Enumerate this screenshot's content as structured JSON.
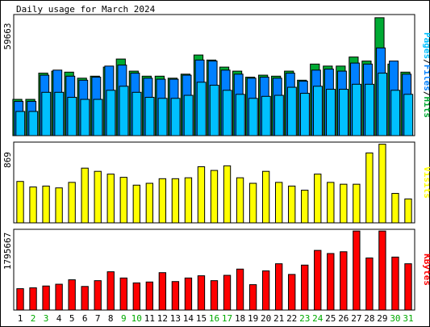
{
  "title": "Daily usage for March 2024",
  "days": [
    "1",
    "2",
    "3",
    "4",
    "5",
    "6",
    "7",
    "8",
    "9",
    "10",
    "11",
    "12",
    "13",
    "14",
    "15",
    "16",
    "17",
    "18",
    "19",
    "20",
    "21",
    "22",
    "23",
    "24",
    "25",
    "26",
    "27",
    "28",
    "29",
    "30",
    "31"
  ],
  "weekend_days": [
    "2",
    "3",
    "9",
    "10",
    "16",
    "17",
    "23",
    "24",
    "30",
    "31"
  ],
  "colors": {
    "hits": "#00AA33",
    "files": "#0080FF",
    "pages": "#00C0FF",
    "visits": "#FFFF00",
    "kbytes": "#FF0000",
    "weekday_label": "#000000",
    "weekend_label": "#00AA00"
  },
  "chart_data": [
    {
      "type": "bar",
      "panel": "hits",
      "max_label": "59663",
      "ylim": [
        0,
        59663
      ],
      "legend": [
        {
          "label": "Pages",
          "color": "#00C0FF"
        },
        {
          "label": "/",
          "color": "#000000"
        },
        {
          "label": "Files",
          "color": "#0080FF"
        },
        {
          "label": "/",
          "color": "#000000"
        },
        {
          "label": "Hits",
          "color": "#00AA33"
        }
      ],
      "categories": [
        "1",
        "2",
        "3",
        "4",
        "5",
        "6",
        "7",
        "8",
        "9",
        "10",
        "11",
        "12",
        "13",
        "14",
        "15",
        "16",
        "17",
        "18",
        "19",
        "20",
        "21",
        "22",
        "23",
        "24",
        "25",
        "26",
        "27",
        "28",
        "29",
        "30",
        "31"
      ],
      "series": [
        {
          "name": "Hits",
          "values": [
            18000,
            18000,
            31000,
            32000,
            31500,
            28500,
            29500,
            34000,
            38000,
            32000,
            29500,
            29500,
            28500,
            30500,
            40000,
            37500,
            34000,
            32000,
            29000,
            30000,
            29500,
            32000,
            27500,
            35500,
            34500,
            34500,
            39000,
            37000,
            58500,
            35500,
            31500
          ]
        },
        {
          "name": "Files",
          "values": [
            17000,
            17000,
            30000,
            32500,
            29500,
            27500,
            29000,
            34500,
            35000,
            31000,
            28500,
            28000,
            28000,
            30000,
            37500,
            37000,
            32500,
            30500,
            28500,
            29000,
            28500,
            31000,
            27000,
            32500,
            33000,
            32000,
            36000,
            35500,
            43500,
            37000,
            30500
          ]
        },
        {
          "name": "Pages",
          "values": [
            12000,
            12000,
            21500,
            21500,
            19000,
            18000,
            18000,
            22500,
            24500,
            21500,
            19000,
            18500,
            18500,
            20000,
            26500,
            25000,
            22500,
            20500,
            18500,
            19500,
            20000,
            24000,
            21000,
            24500,
            23000,
            23000,
            25500,
            25500,
            31000,
            22500,
            20500
          ]
        }
      ]
    },
    {
      "type": "bar",
      "panel": "visits",
      "max_label": "869",
      "ylim": [
        0,
        869
      ],
      "legend": [
        {
          "label": "Visits",
          "color": "#FFFF00"
        }
      ],
      "categories": [
        "1",
        "2",
        "3",
        "4",
        "5",
        "6",
        "7",
        "8",
        "9",
        "10",
        "11",
        "12",
        "13",
        "14",
        "15",
        "16",
        "17",
        "18",
        "19",
        "20",
        "21",
        "22",
        "23",
        "24",
        "25",
        "26",
        "27",
        "28",
        "29",
        "30",
        "31"
      ],
      "series": [
        {
          "name": "Visits",
          "values": [
            450,
            390,
            400,
            380,
            440,
            595,
            560,
            530,
            495,
            410,
            430,
            480,
            480,
            490,
            610,
            570,
            620,
            490,
            430,
            560,
            440,
            400,
            355,
            530,
            440,
            420,
            420,
            760,
            855,
            320,
            260
          ]
        }
      ]
    },
    {
      "type": "bar",
      "panel": "kbytes",
      "max_label": "1795667",
      "ylim": [
        0,
        1795667
      ],
      "legend": [
        {
          "label": "KBytes",
          "color": "#FF0000"
        }
      ],
      "categories": [
        "1",
        "2",
        "3",
        "4",
        "5",
        "6",
        "7",
        "8",
        "9",
        "10",
        "11",
        "12",
        "13",
        "14",
        "15",
        "16",
        "17",
        "18",
        "19",
        "20",
        "21",
        "22",
        "23",
        "24",
        "25",
        "26",
        "27",
        "28",
        "29",
        "30",
        "31"
      ],
      "series": [
        {
          "name": "KBytes",
          "values": [
            480000,
            500000,
            540000,
            580000,
            680000,
            530000,
            660000,
            860000,
            720000,
            610000,
            630000,
            840000,
            640000,
            720000,
            770000,
            660000,
            780000,
            920000,
            570000,
            880000,
            1040000,
            800000,
            1010000,
            1340000,
            1270000,
            1310000,
            1775000,
            1170000,
            1775000,
            1190000,
            1040000
          ]
        }
      ]
    }
  ]
}
